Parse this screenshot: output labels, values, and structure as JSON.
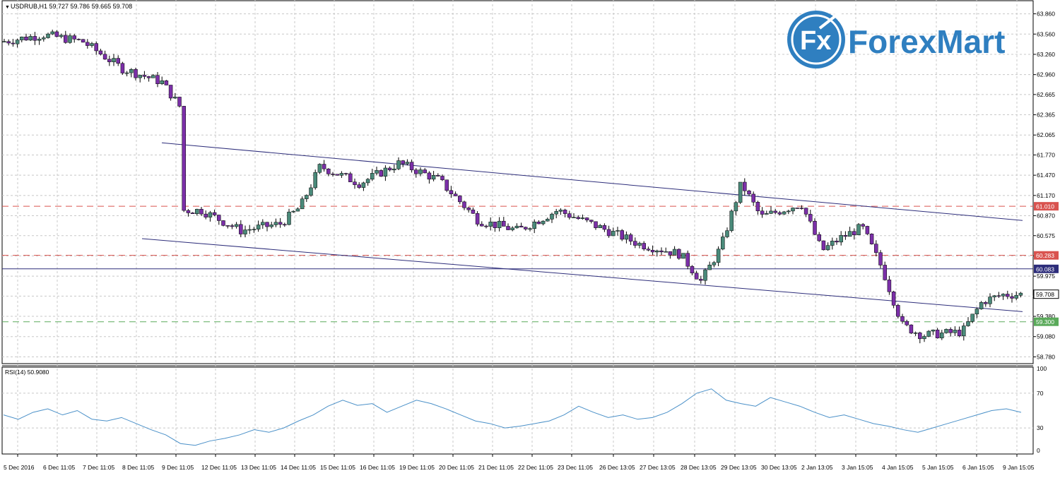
{
  "header": {
    "symbol_line": "USDRUB,H1  59.727 59.786 59.665 59.708"
  },
  "logo": {
    "prefix": "Fx",
    "text": "ForexMart"
  },
  "rsi": {
    "label": "RSI(14) 50.9080",
    "levels": [
      "100",
      "70",
      "30",
      "0"
    ]
  },
  "colors": {
    "bull": "#4a8a7a",
    "bear": "#7b2fa8",
    "grid": "#c8c8c8",
    "resistance": "#d9534f",
    "support": "#5aaa5a",
    "channel": "#2d2d7a",
    "rsi_line": "#4a90c8",
    "logo_blue": "#2f7fc0"
  },
  "chart_data": {
    "type": "candlestick",
    "symbol": "USDRUB",
    "timeframe": "H1",
    "ohlc_last": {
      "open": 59.727,
      "high": 59.786,
      "low": 59.665,
      "close": 59.708
    },
    "ylim": [
      58.68,
      63.96
    ],
    "y_ticks": [
      "63.860",
      "63.560",
      "63.260",
      "62.960",
      "62.665",
      "62.365",
      "62.065",
      "61.770",
      "61.470",
      "61.170",
      "60.870",
      "60.575",
      "60.275",
      "59.975",
      "59.680",
      "59.380",
      "59.080",
      "58.780"
    ],
    "x_ticks": [
      "5 Dec 2016",
      "6 Dec 11:05",
      "7 Dec 11:05",
      "8 Dec 11:05",
      "9 Dec 11:05",
      "12 Dec 11:05",
      "13 Dec 11:05",
      "14 Dec 11:05",
      "15 Dec 11:05",
      "16 Dec 11:05",
      "19 Dec 11:05",
      "20 Dec 11:05",
      "21 Dec 11:05",
      "22 Dec 11:05",
      "23 Dec 11:05",
      "26 Dec 13:05",
      "27 Dec 13:05",
      "28 Dec 13:05",
      "29 Dec 13:05",
      "30 Dec 13:05",
      "2 Jan 13:05",
      "3 Jan 15:05",
      "4 Jan 15:05",
      "5 Jan 15:05",
      "6 Jan 15:05",
      "9 Jan 15:05"
    ],
    "levels": [
      {
        "value": 61.01,
        "label": "61.010",
        "style": "dashed",
        "color": "#d9534f"
      },
      {
        "value": 60.283,
        "label": "60.283",
        "style": "dashed",
        "color": "#d9534f"
      },
      {
        "value": 60.083,
        "label": "60.083",
        "style": "solid",
        "color": "#2d2d7a"
      },
      {
        "value": 59.708,
        "label": "59.708",
        "style": "price",
        "color": "#000000"
      },
      {
        "value": 59.3,
        "label": "59.300",
        "style": "dashed",
        "color": "#5aaa5a"
      }
    ],
    "channel": [
      {
        "from": [
          "9 Dec 11:05",
          61.95
        ],
        "to": [
          "9 Jan 15:05+",
          60.8
        ]
      },
      {
        "from": [
          "8 Dec 11:05+",
          60.53
        ],
        "to": [
          "9 Jan 15:05+",
          59.45
        ]
      }
    ],
    "close_path": [
      [
        "5 Dec 2016",
        63.45
      ],
      [
        "6 Dec 11:05",
        63.55
      ],
      [
        "7 Dec 11:05",
        63.45
      ],
      [
        "8 Dec 11:05",
        63.05
      ],
      [
        "9 Dec 11:05",
        62.85
      ],
      [
        "9 Dec 11:05+",
        62.45
      ],
      [
        "12 Dec 11:05-",
        60.95
      ],
      [
        "12 Dec 11:05",
        60.95
      ],
      [
        "13 Dec 11:05",
        60.65
      ],
      [
        "14 Dec 11:05",
        60.75
      ],
      [
        "15 Dec 11:05-",
        61.0
      ],
      [
        "15 Dec 11:05",
        61.6
      ],
      [
        "16 Dec 11:05",
        61.35
      ],
      [
        "19 Dec 11:05",
        61.65
      ],
      [
        "20 Dec 11:05",
        61.4
      ],
      [
        "21 Dec 11:05",
        60.8
      ],
      [
        "22 Dec 11:05",
        60.65
      ],
      [
        "23 Dec 11:05",
        60.95
      ],
      [
        "26 Dec 13:05",
        60.7
      ],
      [
        "27 Dec 13:05",
        60.45
      ],
      [
        "28 Dec 13:05",
        60.3
      ],
      [
        "29 Dec 13:05-",
        59.9
      ],
      [
        "29 Dec 13:05",
        60.4
      ],
      [
        "30 Dec 13:05-",
        61.35
      ],
      [
        "30 Dec 13:05",
        60.85
      ],
      [
        "2 Jan 13:05",
        61.05
      ],
      [
        "3 Jan 15:05-",
        60.35
      ],
      [
        "3 Jan 15:05",
        60.55
      ],
      [
        "4 Jan 15:05-",
        60.7
      ],
      [
        "4 Jan 15:05",
        60.1
      ],
      [
        "5 Jan 15:05-",
        59.25
      ],
      [
        "5 Jan 15:05",
        59.1
      ],
      [
        "6 Jan 15:05",
        59.15
      ],
      [
        "6 Jan 15:05+",
        59.6
      ],
      [
        "9 Jan 15:05",
        59.7
      ],
      [
        "9 Jan 15:05+",
        59.708
      ]
    ],
    "rsi_values": [
      45,
      40,
      48,
      52,
      45,
      50,
      40,
      38,
      42,
      35,
      28,
      22,
      12,
      10,
      15,
      18,
      22,
      28,
      25,
      30,
      38,
      45,
      55,
      62,
      56,
      58,
      48,
      55,
      62,
      58,
      52,
      45,
      38,
      35,
      30,
      32,
      35,
      38,
      45,
      55,
      48,
      42,
      45,
      40,
      42,
      48,
      58,
      70,
      75,
      62,
      58,
      55,
      65,
      60,
      55,
      48,
      42,
      45,
      40,
      35,
      32,
      28,
      25,
      30,
      35,
      40,
      45,
      50,
      52,
      48
    ]
  }
}
